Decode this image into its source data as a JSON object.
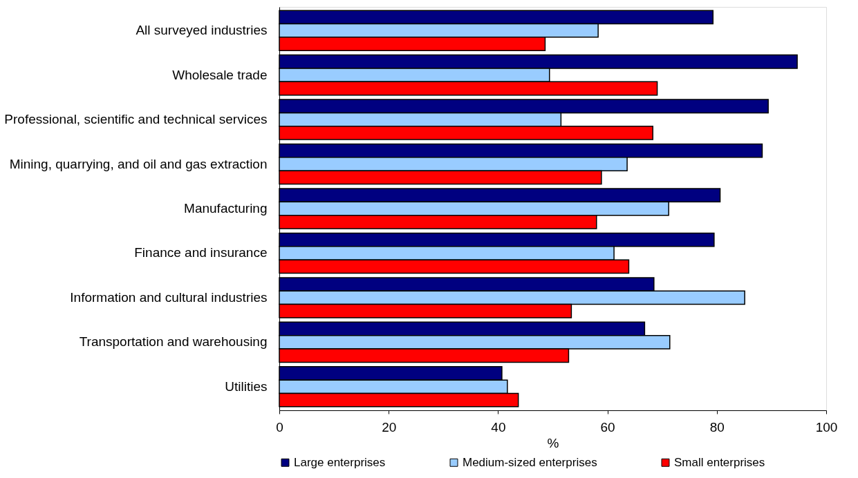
{
  "chart_data": {
    "type": "bar",
    "orientation": "horizontal",
    "xlabel": "%",
    "categories": [
      "All surveyed industries",
      "Wholesale trade",
      "Professional, scientific and technical services",
      "Mining, quarrying, and oil and gas extraction",
      "Manufacturing",
      "Finance and insurance",
      "Information and cultural industries",
      "Transportation and warehousing",
      "Utilities"
    ],
    "series": [
      {
        "name": "Large enterprises",
        "color": "#000080",
        "values": [
          79.3,
          94.7,
          89.4,
          88.3,
          80.6,
          79.5,
          68.5,
          66.8,
          40.7
        ]
      },
      {
        "name": "Medium-sized enterprises",
        "color": "#99ccff",
        "values": [
          58.3,
          49.4,
          51.5,
          63.6,
          71.2,
          61.2,
          85.1,
          71.4,
          41.7
        ]
      },
      {
        "name": "Small enterprises",
        "color": "#ff0000",
        "values": [
          48.6,
          69.1,
          68.3,
          58.9,
          58.0,
          63.9,
          53.4,
          52.9,
          43.7
        ]
      }
    ],
    "xlim": [
      0,
      100
    ],
    "xticks": [
      0,
      20,
      40,
      60,
      80,
      100
    ],
    "grid": false,
    "legend": "bottom"
  }
}
